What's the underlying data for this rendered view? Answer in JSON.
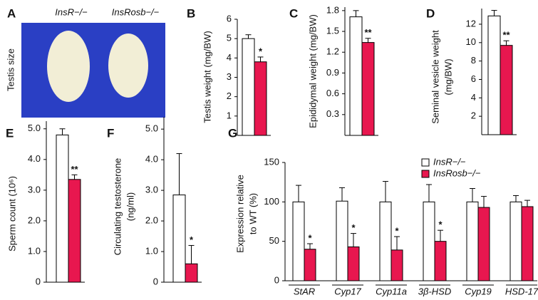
{
  "panel_a": {
    "label": "A",
    "columns": [
      "InsR−/−",
      "InsRosb−/−"
    ],
    "ylabel": "Testis size"
  },
  "chart_data": [
    {
      "type": "bar",
      "panel": "B",
      "ylabel": [
        "Testis weight (mg/BW)"
      ],
      "categories": [
        null
      ],
      "series": [
        {
          "color": "#ffffff",
          "values": [
            5.0
          ],
          "errors": [
            0.2
          ]
        },
        {
          "color": "#e8174f",
          "values": [
            3.8
          ],
          "errors": [
            0.25
          ],
          "significance": [
            "*"
          ]
        }
      ],
      "ylim": [
        0,
        6
      ],
      "yticks": [
        1,
        2,
        3,
        4,
        5,
        6
      ]
    },
    {
      "type": "bar",
      "panel": "C",
      "ylabel": [
        "Epididymal weight (mg/BW)"
      ],
      "categories": [
        null
      ],
      "series": [
        {
          "color": "#ffffff",
          "values": [
            1.71
          ],
          "errors": [
            0.09
          ]
        },
        {
          "color": "#e8174f",
          "values": [
            1.34
          ],
          "errors": [
            0.06
          ],
          "significance": [
            "**"
          ]
        }
      ],
      "ylim": [
        0,
        1.85
      ],
      "yticks": [
        0.3,
        0.6,
        0.9,
        1.2,
        1.5,
        1.8
      ]
    },
    {
      "type": "bar",
      "panel": "D",
      "ylabel": [
        "Seminal vesicle weight",
        "(mg/BW)"
      ],
      "categories": [
        null
      ],
      "series": [
        {
          "color": "#ffffff",
          "values": [
            12.9
          ],
          "errors": [
            0.6
          ]
        },
        {
          "color": "#e8174f",
          "values": [
            9.7
          ],
          "errors": [
            0.5
          ],
          "significance": [
            "**"
          ]
        }
      ],
      "ylim": [
        0,
        13.7
      ],
      "yticks": [
        2,
        4,
        6,
        8,
        10,
        12
      ]
    },
    {
      "type": "bar",
      "panel": "E",
      "ylabel": [
        "Sperm count (10⁶)"
      ],
      "categories": [
        null
      ],
      "series": [
        {
          "color": "#ffffff",
          "values": [
            4.8
          ],
          "errors": [
            0.2
          ]
        },
        {
          "color": "#e8174f",
          "values": [
            3.35
          ],
          "errors": [
            0.15
          ],
          "significance": [
            "**"
          ]
        }
      ],
      "ylim": [
        0,
        5.25
      ],
      "yticks": [
        0,
        {
          "value": 1,
          "label": "1.0"
        },
        {
          "value": 2,
          "label": "2.0"
        },
        {
          "value": 3,
          "label": "3.0"
        },
        {
          "value": 4,
          "label": "4.0"
        },
        {
          "value": 5,
          "label": "5.0"
        }
      ]
    },
    {
      "type": "bar",
      "panel": "F",
      "ylabel": [
        "Circulating testosterone",
        "(ng/ml)"
      ],
      "categories": [
        null
      ],
      "series": [
        {
          "color": "#ffffff",
          "values": [
            2.85
          ],
          "errors": [
            1.35
          ]
        },
        {
          "color": "#e8174f",
          "values": [
            0.6
          ],
          "errors": [
            0.6
          ],
          "significance": [
            "*"
          ]
        }
      ],
      "ylim": [
        0,
        5.4
      ],
      "yticks": [
        0,
        {
          "value": 1,
          "label": "1.0"
        },
        {
          "value": 2,
          "label": "2.0"
        },
        {
          "value": 3,
          "label": "3.0"
        },
        {
          "value": 4,
          "label": "4.0"
        },
        {
          "value": 5,
          "label": "5.0"
        }
      ]
    },
    {
      "type": "bar",
      "panel": "G",
      "ylabel": [
        "Expression relative",
        "to WT (%)"
      ],
      "categories": [
        "StAR",
        "Cyp17",
        "Cyp11a",
        "3β-HSD",
        "Cyp19",
        "HSD-17"
      ],
      "series": [
        {
          "name": "InsR−/−",
          "color": "#ffffff",
          "values": [
            100,
            101,
            100,
            100,
            100,
            100
          ],
          "errors": [
            21,
            17,
            26,
            22,
            17,
            8
          ]
        },
        {
          "name": "InsRosb−/−",
          "color": "#e8174f",
          "values": [
            40,
            43,
            39,
            50,
            93,
            94
          ],
          "errors": [
            7,
            17,
            17,
            14,
            14,
            8
          ],
          "significance": [
            "*",
            "*",
            "*",
            "*",
            null,
            null
          ]
        }
      ],
      "ylim": [
        0,
        150
      ],
      "yticks": [
        0,
        50,
        100,
        150
      ],
      "legend": "upper right"
    }
  ]
}
